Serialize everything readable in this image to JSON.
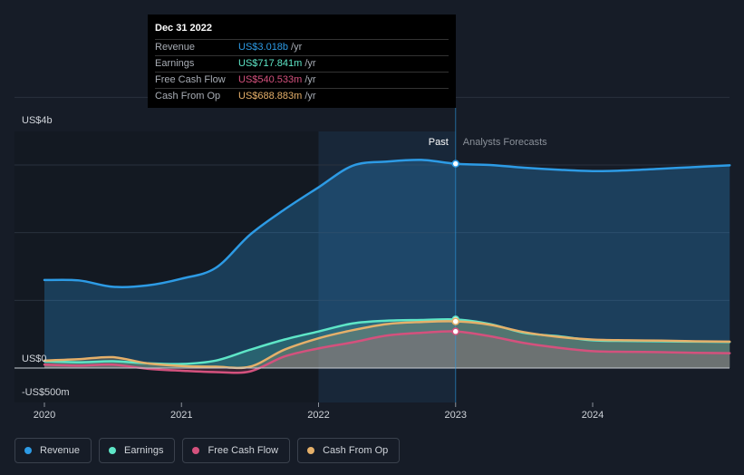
{
  "tooltip": {
    "date": "Dec 31 2022",
    "rows": [
      {
        "label": "Revenue",
        "value": "US$3.018b",
        "unit": "/yr",
        "color": "#2d9be5"
      },
      {
        "label": "Earnings",
        "value": "US$717.841m",
        "unit": "/yr",
        "color": "#5ee6c7"
      },
      {
        "label": "Free Cash Flow",
        "value": "US$540.533m",
        "unit": "/yr",
        "color": "#d4517d"
      },
      {
        "label": "Cash From Op",
        "value": "US$688.883m",
        "unit": "/yr",
        "color": "#e5b06a"
      }
    ]
  },
  "legend": [
    {
      "label": "Revenue",
      "color": "#2d9be5"
    },
    {
      "label": "Earnings",
      "color": "#5ee6c7"
    },
    {
      "label": "Free Cash Flow",
      "color": "#d4517d"
    },
    {
      "label": "Cash From Op",
      "color": "#e5b06a"
    }
  ],
  "chart_data": {
    "type": "line",
    "y_labels": {
      "top": "US$4b",
      "zero": "US$0",
      "bottom": "-US$500m"
    },
    "ylim": [
      -500,
      4000
    ],
    "x_ticks": [
      "2020",
      "2021",
      "2022",
      "2023",
      "2024"
    ],
    "x_tick_values": [
      2020,
      2021,
      2022,
      2023,
      2024
    ],
    "xlim": [
      2019.8,
      2025.0
    ],
    "past_label": "Past",
    "forecast_label": "Analysts Forecasts",
    "past_end": 2023.0,
    "highlight_start": 2022.0,
    "grid": true,
    "series": [
      {
        "name": "Revenue",
        "color": "#2d9be5",
        "points": [
          [
            2020.0,
            1300
          ],
          [
            2020.25,
            1295
          ],
          [
            2020.5,
            1200
          ],
          [
            2020.75,
            1220
          ],
          [
            2021.0,
            1320
          ],
          [
            2021.25,
            1480
          ],
          [
            2021.5,
            1970
          ],
          [
            2021.75,
            2340
          ],
          [
            2022.0,
            2670
          ],
          [
            2022.25,
            2990
          ],
          [
            2022.5,
            3050
          ],
          [
            2022.75,
            3075
          ],
          [
            2023.0,
            3018
          ],
          [
            2023.25,
            3000
          ],
          [
            2023.5,
            2960
          ],
          [
            2023.75,
            2930
          ],
          [
            2024.0,
            2910
          ],
          [
            2024.25,
            2920
          ],
          [
            2024.5,
            2945
          ],
          [
            2024.75,
            2970
          ],
          [
            2025.0,
            2995
          ]
        ]
      },
      {
        "name": "Earnings",
        "color": "#5ee6c7",
        "points": [
          [
            2020.0,
            100
          ],
          [
            2020.25,
            85
          ],
          [
            2020.5,
            100
          ],
          [
            2020.75,
            70
          ],
          [
            2021.0,
            60
          ],
          [
            2021.25,
            110
          ],
          [
            2021.5,
            270
          ],
          [
            2021.75,
            420
          ],
          [
            2022.0,
            540
          ],
          [
            2022.25,
            660
          ],
          [
            2022.5,
            700
          ],
          [
            2022.75,
            710
          ],
          [
            2023.0,
            717.841
          ],
          [
            2023.25,
            650
          ],
          [
            2023.5,
            520
          ],
          [
            2023.75,
            470
          ],
          [
            2024.0,
            410
          ],
          [
            2024.25,
            400
          ],
          [
            2024.5,
            395
          ],
          [
            2024.75,
            390
          ],
          [
            2025.0,
            385
          ]
        ]
      },
      {
        "name": "Free Cash Flow",
        "color": "#d4517d",
        "points": [
          [
            2020.0,
            50
          ],
          [
            2020.25,
            35
          ],
          [
            2020.5,
            50
          ],
          [
            2020.75,
            -10
          ],
          [
            2021.0,
            -40
          ],
          [
            2021.25,
            -60
          ],
          [
            2021.5,
            -50
          ],
          [
            2021.75,
            170
          ],
          [
            2022.0,
            290
          ],
          [
            2022.25,
            380
          ],
          [
            2022.5,
            480
          ],
          [
            2022.75,
            520
          ],
          [
            2023.0,
            540.533
          ],
          [
            2023.25,
            470
          ],
          [
            2023.5,
            370
          ],
          [
            2023.75,
            300
          ],
          [
            2024.0,
            250
          ],
          [
            2024.25,
            240
          ],
          [
            2024.5,
            235
          ],
          [
            2024.75,
            225
          ],
          [
            2025.0,
            220
          ]
        ]
      },
      {
        "name": "Cash From Op",
        "color": "#e5b06a",
        "points": [
          [
            2020.0,
            110
          ],
          [
            2020.25,
            130
          ],
          [
            2020.5,
            160
          ],
          [
            2020.75,
            70
          ],
          [
            2021.0,
            30
          ],
          [
            2021.25,
            20
          ],
          [
            2021.5,
            20
          ],
          [
            2021.75,
            270
          ],
          [
            2022.0,
            440
          ],
          [
            2022.25,
            560
          ],
          [
            2022.5,
            650
          ],
          [
            2022.75,
            680
          ],
          [
            2023.0,
            688.883
          ],
          [
            2023.25,
            640
          ],
          [
            2023.5,
            530
          ],
          [
            2023.75,
            460
          ],
          [
            2024.0,
            420
          ],
          [
            2024.25,
            410
          ],
          [
            2024.5,
            405
          ],
          [
            2024.75,
            395
          ],
          [
            2025.0,
            390
          ]
        ]
      }
    ],
    "marker_x": 2023.0
  }
}
